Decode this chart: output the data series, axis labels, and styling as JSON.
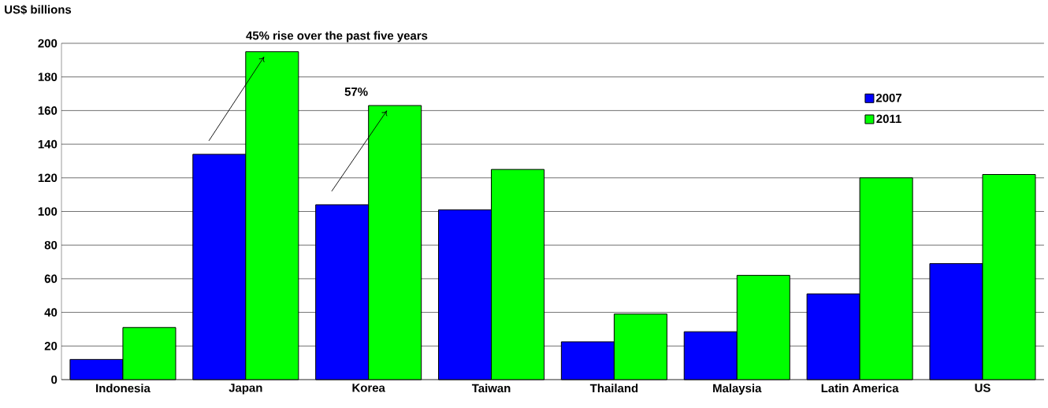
{
  "chart_data": {
    "type": "bar",
    "ylabel": "US$ billions",
    "categories": [
      "Indonesia",
      "Japan",
      "Korea",
      "Taiwan",
      "Thailand",
      "Malaysia",
      "Latin America",
      "US"
    ],
    "series": [
      {
        "name": "2007",
        "color": "#0000ff",
        "values": [
          12,
          134,
          104,
          101,
          22.5,
          28.5,
          51,
          69
        ]
      },
      {
        "name": "2011",
        "color": "#00ff00",
        "values": [
          31,
          195,
          163,
          125,
          39,
          62,
          120,
          122
        ]
      }
    ],
    "ylim": [
      0,
      200
    ],
    "yticks": [
      0,
      20,
      40,
      60,
      80,
      100,
      120,
      140,
      160,
      180,
      200
    ],
    "grid": "y",
    "legend": "top right",
    "annotations": [
      {
        "text": "45% rise over the past five years",
        "x": "Japan",
        "y": 195
      },
      {
        "text": "57%",
        "x": "Korea",
        "y": 163
      }
    ]
  }
}
